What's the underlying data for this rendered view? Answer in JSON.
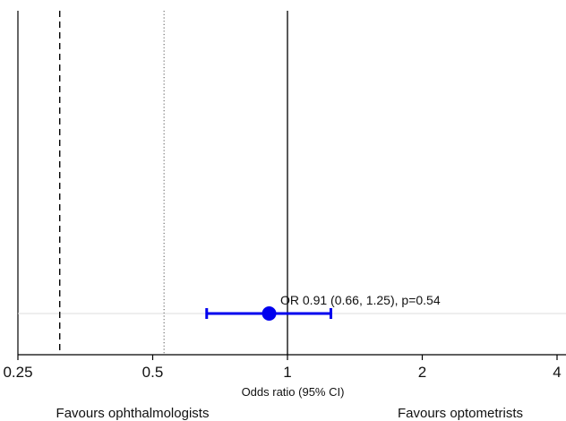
{
  "chart_data": {
    "type": "scatter",
    "x_scale": "log2",
    "xlim": [
      0.25,
      4
    ],
    "xticks": [
      {
        "value": 0.25,
        "label": "0.25"
      },
      {
        "value": 0.5,
        "label": "0.5"
      },
      {
        "value": 1,
        "label": "1"
      },
      {
        "value": 2,
        "label": "2"
      },
      {
        "value": 4,
        "label": "4"
      }
    ],
    "xlabel": "Odds ratio (95% CI)",
    "reference_lines": [
      {
        "x": 1,
        "style": "solid"
      },
      {
        "x": 0.31,
        "style": "dashed"
      },
      {
        "x": 0.53,
        "style": "dotted"
      }
    ],
    "estimate": {
      "or": 0.91,
      "ci_low": 0.66,
      "ci_high": 1.25,
      "label": "OR 0.91 (0.66, 1.25), p=0.54",
      "color": "#0000ee"
    },
    "left_favours": "Favours ophthalmologists",
    "right_favours": "Favours optometrists",
    "grid": false
  }
}
